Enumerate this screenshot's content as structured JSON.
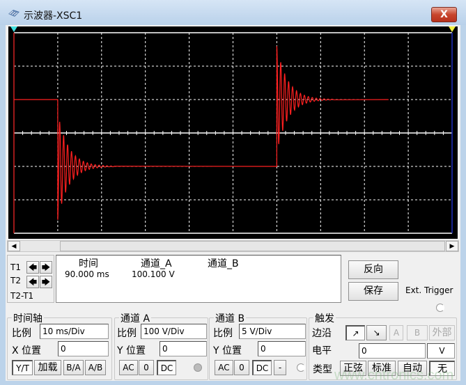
{
  "window": {
    "title": "示波器-XSC1",
    "close_label": "X",
    "icon": "oscilloscope-icon"
  },
  "cursors": {
    "t1_label": "T1",
    "t2_label": "T2",
    "diff_label": "T2-T1",
    "t1_marker": "1",
    "t2_marker": "2"
  },
  "readout": {
    "headers": [
      "时间",
      "通道_A",
      "通道_B"
    ],
    "t1_values": [
      "90.000 ms",
      "100.100 V",
      ""
    ]
  },
  "buttons": {
    "reverse": "反向",
    "save": "保存",
    "ext_trigger": "Ext. Trigger"
  },
  "timebase": {
    "title": "时间轴",
    "scale_label": "比例",
    "scale": "10 ms/Div",
    "xpos_label": "X 位置",
    "xpos": "0",
    "modes": [
      "Y/T",
      "加载",
      "B/A",
      "A/B"
    ],
    "active_mode": "Y/T"
  },
  "channel_a": {
    "title": "通道 A",
    "scale_label": "比例",
    "scale": "100  V/Div",
    "ypos_label": "Y 位置",
    "ypos": "0",
    "coupling": [
      "AC",
      "0",
      "DC"
    ],
    "active_coupling": "DC"
  },
  "channel_b": {
    "title": "通道 B",
    "scale_label": "比例",
    "scale": "5  V/Div",
    "ypos_label": "Y 位置",
    "ypos": "0",
    "coupling": [
      "AC",
      "0",
      "DC",
      "-"
    ],
    "active_coupling": "DC"
  },
  "trigger": {
    "title": "触发",
    "edge_label": "边沿",
    "edges": [
      "↗",
      "↘",
      "A",
      "B",
      "外部"
    ],
    "level_label": "电平",
    "level": "0",
    "level_unit": "V",
    "type_label": "类型",
    "types": [
      "正弦",
      "标准",
      "自动",
      "无"
    ],
    "active_type": "无"
  },
  "watermark": "www.cntronics.com",
  "colors": {
    "trace_a": "#ff2020",
    "grid": "#ffffff",
    "screen": "#000000",
    "cursor1": "#40e0e0",
    "cursor2": "#f0f040"
  },
  "chart_data": {
    "type": "line",
    "x_unit": "ms",
    "y_unit": "V",
    "xlim": [
      0,
      100
    ],
    "x_divisions": 10,
    "x_per_div": 10,
    "ylim": [
      -300,
      300
    ],
    "y_divisions": 6,
    "y_per_div": 100,
    "grid": true,
    "series": [
      {
        "channel": "A",
        "initial_V": 100,
        "steps": [
          {
            "t_ms": 10,
            "to_V": -100,
            "peak_V": -260
          },
          {
            "t_ms": 60,
            "to_V": 100,
            "peak_V": 260
          }
        ],
        "settle_ms": 10,
        "end_ms": 85.5
      }
    ]
  }
}
